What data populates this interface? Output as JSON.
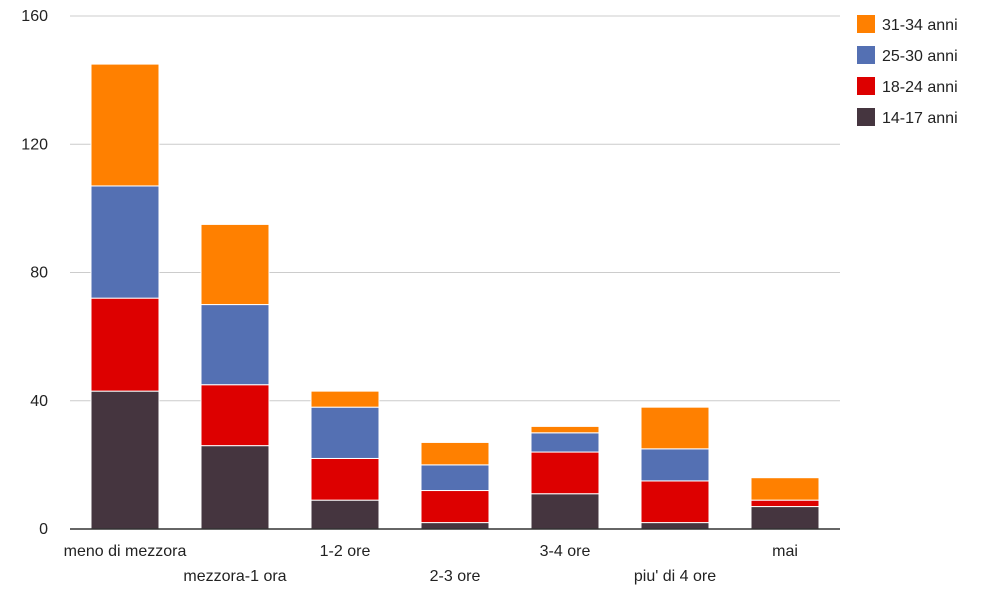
{
  "chart_data": {
    "type": "bar",
    "stacked": true,
    "categories": [
      "meno di mezzora",
      "mezzora-1 ora",
      "1-2 ore",
      "2-3 ore",
      "3-4 ore",
      "piu' di 4 ore",
      "mai"
    ],
    "series": [
      {
        "name": "14-17 anni",
        "color": "#45353f",
        "values": [
          43,
          26,
          9,
          2,
          11,
          2,
          7
        ]
      },
      {
        "name": "18-24 anni",
        "color": "#dd0000",
        "values": [
          29,
          19,
          13,
          10,
          13,
          13,
          2
        ]
      },
      {
        "name": "25-30 anni",
        "color": "#5470b3",
        "values": [
          35,
          25,
          16,
          8,
          6,
          10,
          0
        ]
      },
      {
        "name": "31-34 anni",
        "color": "#ff8000",
        "values": [
          38,
          25,
          5,
          7,
          2,
          13,
          7
        ]
      }
    ],
    "yticks": [
      "0",
      "40",
      "80",
      "120",
      "160"
    ],
    "ylim": [
      0,
      160
    ],
    "grid": true,
    "legend_position": "top-right",
    "title": "",
    "xlabel": "",
    "ylabel": ""
  }
}
